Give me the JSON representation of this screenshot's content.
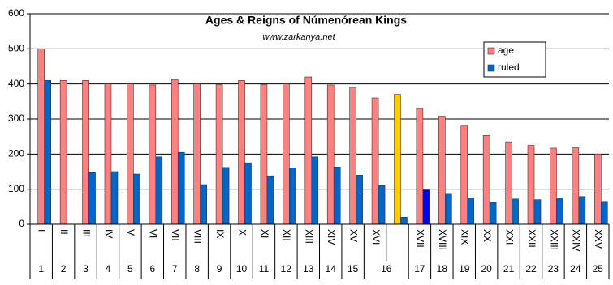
{
  "chart_data": {
    "type": "bar",
    "title": "Ages & Reigns of Númenórean Kings",
    "subtitle": "www.zarkanya.net",
    "categories": [
      "I",
      "II",
      "III",
      "IV",
      "V",
      "VI",
      "VII",
      "VIII",
      "IX",
      "X",
      "XI",
      "XII",
      "XIII",
      "XIV",
      "XV",
      "XVI",
      null,
      "XVII",
      "XVIII",
      "XIX",
      "XX",
      "XXI",
      "XXII",
      "XXIII",
      "XXIV",
      "XXV"
    ],
    "category_groups": [
      {
        "label": "1",
        "count": 1
      },
      {
        "label": "2",
        "count": 1
      },
      {
        "label": "3",
        "count": 1
      },
      {
        "label": "4",
        "count": 1
      },
      {
        "label": "5",
        "count": 1
      },
      {
        "label": "6",
        "count": 1
      },
      {
        "label": "7",
        "count": 1
      },
      {
        "label": "8",
        "count": 1
      },
      {
        "label": "9",
        "count": 1
      },
      {
        "label": "10",
        "count": 1
      },
      {
        "label": "11",
        "count": 1
      },
      {
        "label": "12",
        "count": 1
      },
      {
        "label": "13",
        "count": 1
      },
      {
        "label": "14",
        "count": 1
      },
      {
        "label": "15",
        "count": 1
      },
      {
        "label": "16",
        "count": 2
      },
      {
        "label": "17",
        "count": 1
      },
      {
        "label": "18",
        "count": 1
      },
      {
        "label": "19",
        "count": 1
      },
      {
        "label": "20",
        "count": 1
      },
      {
        "label": "21",
        "count": 1
      },
      {
        "label": "22",
        "count": 1
      },
      {
        "label": "23",
        "count": 1
      },
      {
        "label": "24",
        "count": 1
      },
      {
        "label": "25",
        "count": 1
      }
    ],
    "series": [
      {
        "name": "age",
        "color": "#ff8080",
        "overrides": [
          {
            "index": 16,
            "color": "#ffcc00"
          }
        ],
        "values": [
          500,
          410,
          410,
          400,
          400,
          397,
          412,
          400,
          398,
          410,
          398,
          400,
          420,
          397,
          390,
          360,
          370,
          330,
          308,
          280,
          253,
          235,
          225,
          217,
          218,
          200
        ]
      },
      {
        "name": "ruled",
        "color": "#0066cc",
        "overrides": [
          {
            "index": 17,
            "color": "#0000ff"
          }
        ],
        "values": [
          410,
          null,
          147,
          150,
          143,
          192,
          205,
          113,
          162,
          175,
          138,
          160,
          192,
          163,
          140,
          110,
          20,
          98,
          88,
          75,
          62,
          72,
          70,
          75,
          79,
          65
        ]
      }
    ],
    "ylim": [
      0,
      600
    ],
    "yticks": [
      0,
      100,
      200,
      300,
      400,
      500,
      600
    ],
    "grid": true,
    "legend": "top-right"
  }
}
